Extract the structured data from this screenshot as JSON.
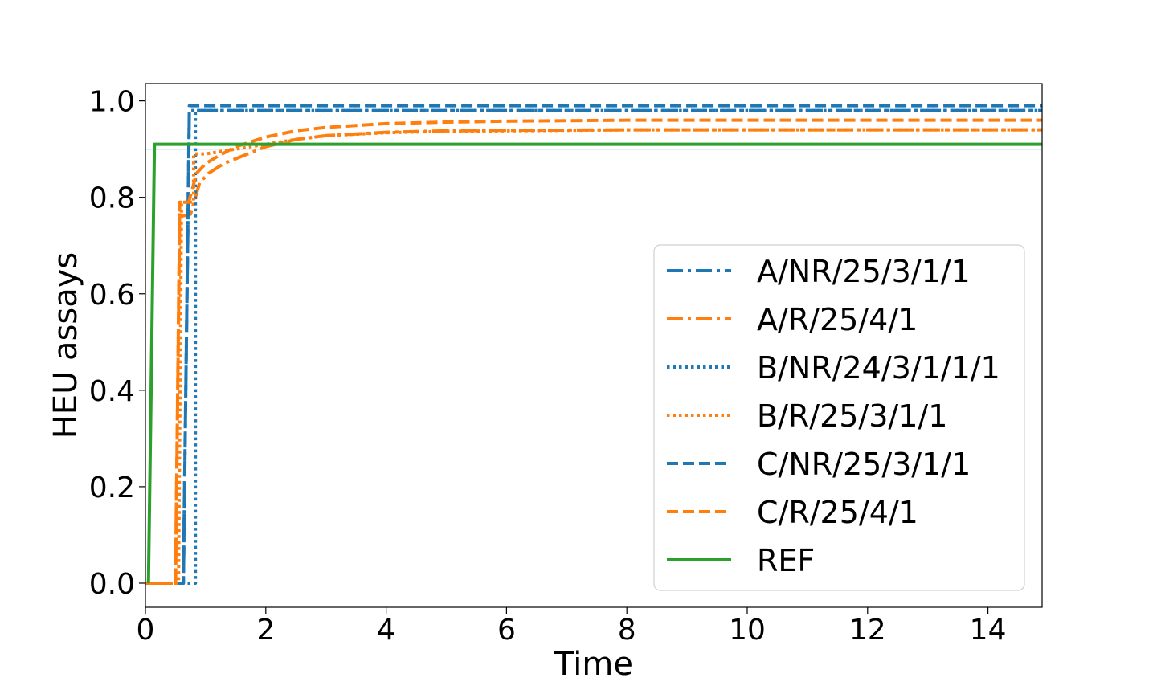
{
  "chart_data": {
    "type": "line",
    "xlabel": "Time",
    "ylabel": "HEU assays",
    "xlim": [
      0,
      14.9
    ],
    "ylim": [
      -0.05,
      1.036
    ],
    "xticks": [
      0,
      2,
      4,
      6,
      8,
      10,
      12,
      14
    ],
    "xtick_labels": [
      "0",
      "2",
      "4",
      "6",
      "8",
      "10",
      "12",
      "14"
    ],
    "yticks": [
      0.0,
      0.2,
      0.4,
      0.6,
      0.8,
      1.0
    ],
    "ytick_labels": [
      "0.0",
      "0.2",
      "0.4",
      "0.6",
      "0.8",
      "1.0"
    ],
    "grid": false,
    "legend_position": "lower-right",
    "reference_line": {
      "y": 0.9,
      "color": "#1f77b4"
    },
    "series": [
      {
        "name": "A/NR/25/3/1/1",
        "color": "#1f77b4",
        "dash": "dashdot",
        "x": [
          0,
          0.63,
          0.73,
          0.73,
          14.9
        ],
        "y": [
          0,
          0,
          0.98,
          0.98,
          0.98
        ]
      },
      {
        "name": "A/R/25/4/1",
        "color": "#ff7f0e",
        "dash": "dashdot",
        "x": [
          0,
          0.5,
          0.57,
          0.57,
          0.75,
          0.9,
          1.05,
          1.3,
          1.6,
          2.0,
          2.5,
          3.0,
          4.0,
          5.0,
          6.0,
          8.0,
          10.0,
          12.0,
          14.9
        ],
        "y": [
          0,
          0,
          0.77,
          0.76,
          0.765,
          0.83,
          0.85,
          0.87,
          0.885,
          0.905,
          0.92,
          0.928,
          0.935,
          0.938,
          0.939,
          0.94,
          0.94,
          0.94,
          0.94
        ]
      },
      {
        "name": "B/NR/24/3/1/1/1",
        "color": "#1f77b4",
        "dash": "dotted",
        "x": [
          0,
          0.83,
          0.83,
          14.9
        ],
        "y": [
          0,
          0,
          0.98,
          0.98
        ]
      },
      {
        "name": "B/R/25/3/1/1",
        "color": "#ff7f0e",
        "dash": "dotted",
        "x": [
          0,
          0.55,
          0.6,
          0.8,
          0.8,
          1.0,
          1.5,
          2.0,
          2.5,
          3.0,
          4.0,
          5.0,
          6.0,
          8.0,
          10.0,
          12.0,
          14.9
        ],
        "y": [
          0,
          0,
          0.79,
          0.79,
          0.89,
          0.89,
          0.9,
          0.91,
          0.92,
          0.928,
          0.934,
          0.937,
          0.938,
          0.94,
          0.94,
          0.94,
          0.94
        ]
      },
      {
        "name": "C/NR/25/3/1/1",
        "color": "#1f77b4",
        "dash": "dashed",
        "x": [
          0,
          0.63,
          0.73,
          0.73,
          14.9
        ],
        "y": [
          0,
          0,
          0.99,
          0.99,
          0.99
        ]
      },
      {
        "name": "C/R/25/4/1",
        "color": "#ff7f0e",
        "dash": "dashed",
        "x": [
          0,
          0.5,
          0.57,
          0.57,
          0.72,
          0.85,
          1.0,
          1.2,
          1.5,
          2.0,
          2.5,
          3.0,
          4.0,
          5.0,
          6.0,
          8.0,
          10.0,
          12.0,
          14.9
        ],
        "y": [
          0,
          0,
          0.79,
          0.79,
          0.79,
          0.85,
          0.87,
          0.885,
          0.905,
          0.925,
          0.938,
          0.945,
          0.953,
          0.956,
          0.958,
          0.96,
          0.96,
          0.96,
          0.96
        ]
      },
      {
        "name": "REF",
        "color": "#2ca02c",
        "dash": "solid",
        "x": [
          0.05,
          0.15,
          14.9
        ],
        "y": [
          0,
          0.91,
          0.91
        ]
      }
    ]
  }
}
